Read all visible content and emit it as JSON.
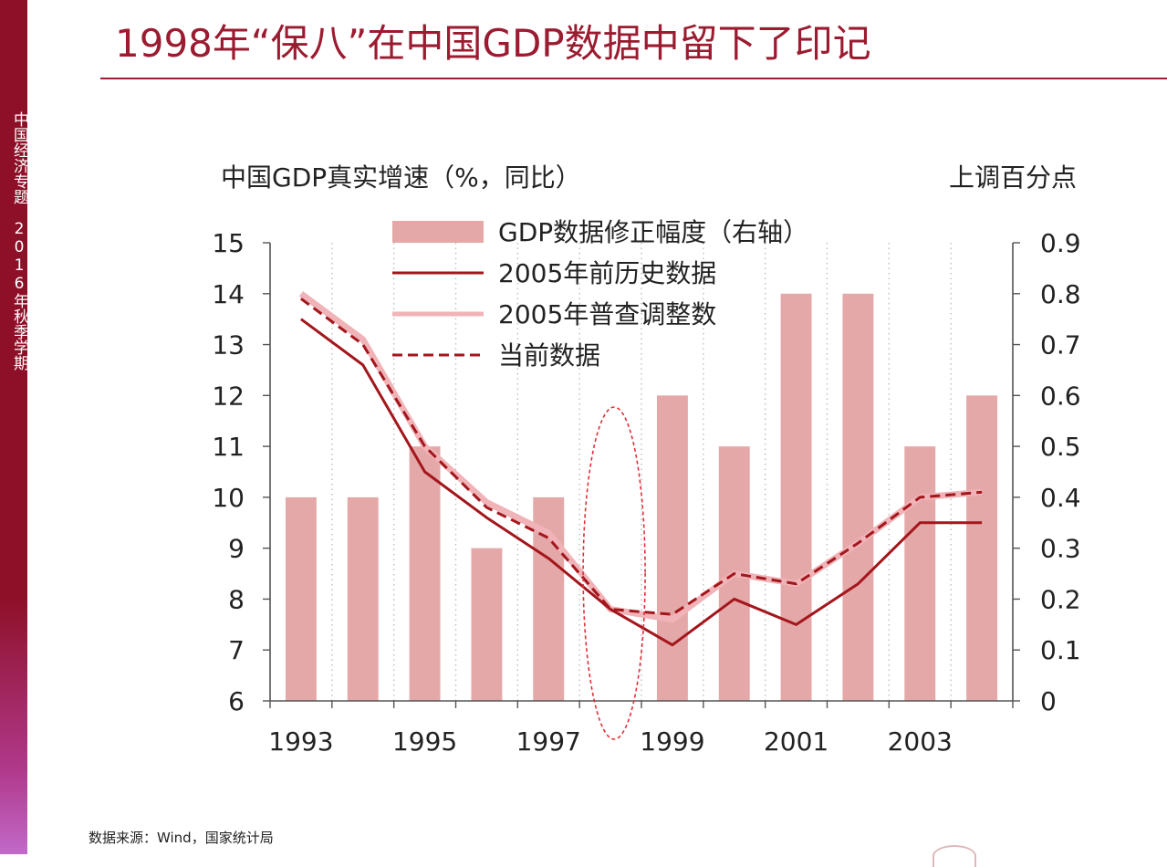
{
  "sidebar": {
    "text": "中国经济专题　2016年秋季学期"
  },
  "page": {
    "title": "1998年“保八”在中国GDP数据中留下了印记"
  },
  "source": "数据来源：Wind，国家统计局",
  "colors": {
    "brand": "#9b1b30",
    "bar": "#e5a8a8",
    "historic": "#a3161c",
    "census": "#f0b4b8",
    "current": "#a3161c",
    "annotation": "#e0303a"
  },
  "chart_data": {
    "type": "bar",
    "left_axis_title": "中国GDP真实增速（%，同比）",
    "right_axis_title": "上调百分点",
    "x": [
      1993,
      1994,
      1995,
      1996,
      1997,
      1998,
      1999,
      2000,
      2001,
      2002,
      2003,
      2004
    ],
    "x_tick_labels": [
      "1993",
      "1995",
      "1997",
      "1999",
      "2001",
      "2003"
    ],
    "x_tick_values": [
      1993,
      1995,
      1997,
      1999,
      2001,
      2003
    ],
    "ylim_left": [
      6,
      15
    ],
    "y_ticks_left": [
      "6",
      "7",
      "8",
      "9",
      "10",
      "11",
      "12",
      "13",
      "14",
      "15"
    ],
    "ylim_right": [
      0,
      0.9
    ],
    "y_ticks_right": [
      "0",
      "0.1",
      "0.2",
      "0.3",
      "0.4",
      "0.5",
      "0.6",
      "0.7",
      "0.8",
      "0.9"
    ],
    "grid": "vertical-dotted",
    "legend_position": "top-center",
    "series": [
      {
        "name": "GDP数据修正幅度（右轴）",
        "kind": "bar",
        "axis": "right",
        "values": [
          0.4,
          0.4,
          0.5,
          0.3,
          0.4,
          0.0,
          0.6,
          0.5,
          0.8,
          0.8,
          0.5,
          0.6
        ]
      },
      {
        "name": "2005年前历史数据",
        "kind": "line",
        "style": "solid",
        "axis": "left",
        "values": [
          13.5,
          12.6,
          10.5,
          9.6,
          8.8,
          7.8,
          7.1,
          8.0,
          7.5,
          8.3,
          9.5,
          9.5
        ]
      },
      {
        "name": "2005年普查调整数",
        "kind": "line",
        "style": "solid-light",
        "axis": "left",
        "values": [
          14.0,
          13.1,
          11.0,
          9.9,
          9.3,
          7.8,
          7.6,
          8.5,
          8.3,
          9.1,
          10.0,
          10.1
        ]
      },
      {
        "name": "当前数据",
        "kind": "line",
        "style": "dashed",
        "axis": "left",
        "values": [
          13.9,
          13.0,
          11.0,
          9.8,
          9.2,
          7.8,
          7.7,
          8.5,
          8.3,
          9.1,
          10.0,
          10.1
        ]
      }
    ],
    "highlight_year": 1998
  }
}
